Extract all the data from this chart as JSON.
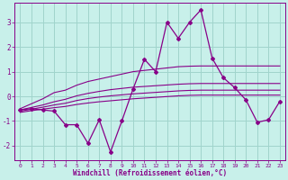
{
  "xlabel": "Windchill (Refroidissement éolien,°C)",
  "background_color": "#c8f0ea",
  "grid_color": "#a0d4cc",
  "line_color": "#880088",
  "x_data": [
    0,
    1,
    2,
    3,
    4,
    5,
    6,
    7,
    8,
    9,
    10,
    11,
    12,
    13,
    14,
    15,
    16,
    17,
    18,
    19,
    20,
    21,
    22,
    23
  ],
  "y_main": [
    -0.55,
    -0.5,
    -0.55,
    -0.6,
    -1.15,
    -1.15,
    -1.9,
    -0.95,
    -2.25,
    -1.0,
    0.3,
    1.5,
    1.0,
    3.0,
    2.35,
    3.0,
    3.5,
    1.55,
    0.75,
    0.35,
    -0.15,
    -1.05,
    -0.95,
    -0.2
  ],
  "y_reg_top": [
    -0.5,
    -0.3,
    -0.1,
    0.15,
    0.25,
    0.45,
    0.6,
    0.7,
    0.8,
    0.9,
    1.0,
    1.05,
    1.1,
    1.15,
    1.2,
    1.22,
    1.23,
    1.23,
    1.23,
    1.23,
    1.23,
    1.23,
    1.23,
    1.23
  ],
  "y_reg_upper": [
    -0.55,
    -0.45,
    -0.35,
    -0.22,
    -0.12,
    0.02,
    0.12,
    0.2,
    0.27,
    0.32,
    0.37,
    0.4,
    0.43,
    0.46,
    0.49,
    0.51,
    0.52,
    0.52,
    0.52,
    0.52,
    0.52,
    0.52,
    0.52,
    0.52
  ],
  "y_reg_lower": [
    -0.6,
    -0.52,
    -0.44,
    -0.35,
    -0.28,
    -0.17,
    -0.09,
    -0.03,
    0.02,
    0.06,
    0.1,
    0.13,
    0.16,
    0.19,
    0.22,
    0.24,
    0.25,
    0.25,
    0.25,
    0.25,
    0.25,
    0.25,
    0.25,
    0.25
  ],
  "y_reg_bottom": [
    -0.65,
    -0.58,
    -0.52,
    -0.46,
    -0.41,
    -0.33,
    -0.27,
    -0.22,
    -0.18,
    -0.14,
    -0.1,
    -0.07,
    -0.04,
    -0.01,
    0.02,
    0.04,
    0.05,
    0.05,
    0.05,
    0.05,
    0.05,
    0.05,
    0.05,
    0.05
  ],
  "xlim": [
    -0.5,
    23.5
  ],
  "ylim": [
    -2.6,
    3.8
  ],
  "yticks": [
    -2,
    -1,
    0,
    1,
    2,
    3
  ],
  "xticks": [
    0,
    1,
    2,
    3,
    4,
    5,
    6,
    7,
    8,
    9,
    10,
    11,
    12,
    13,
    14,
    15,
    16,
    17,
    18,
    19,
    20,
    21,
    22,
    23
  ]
}
